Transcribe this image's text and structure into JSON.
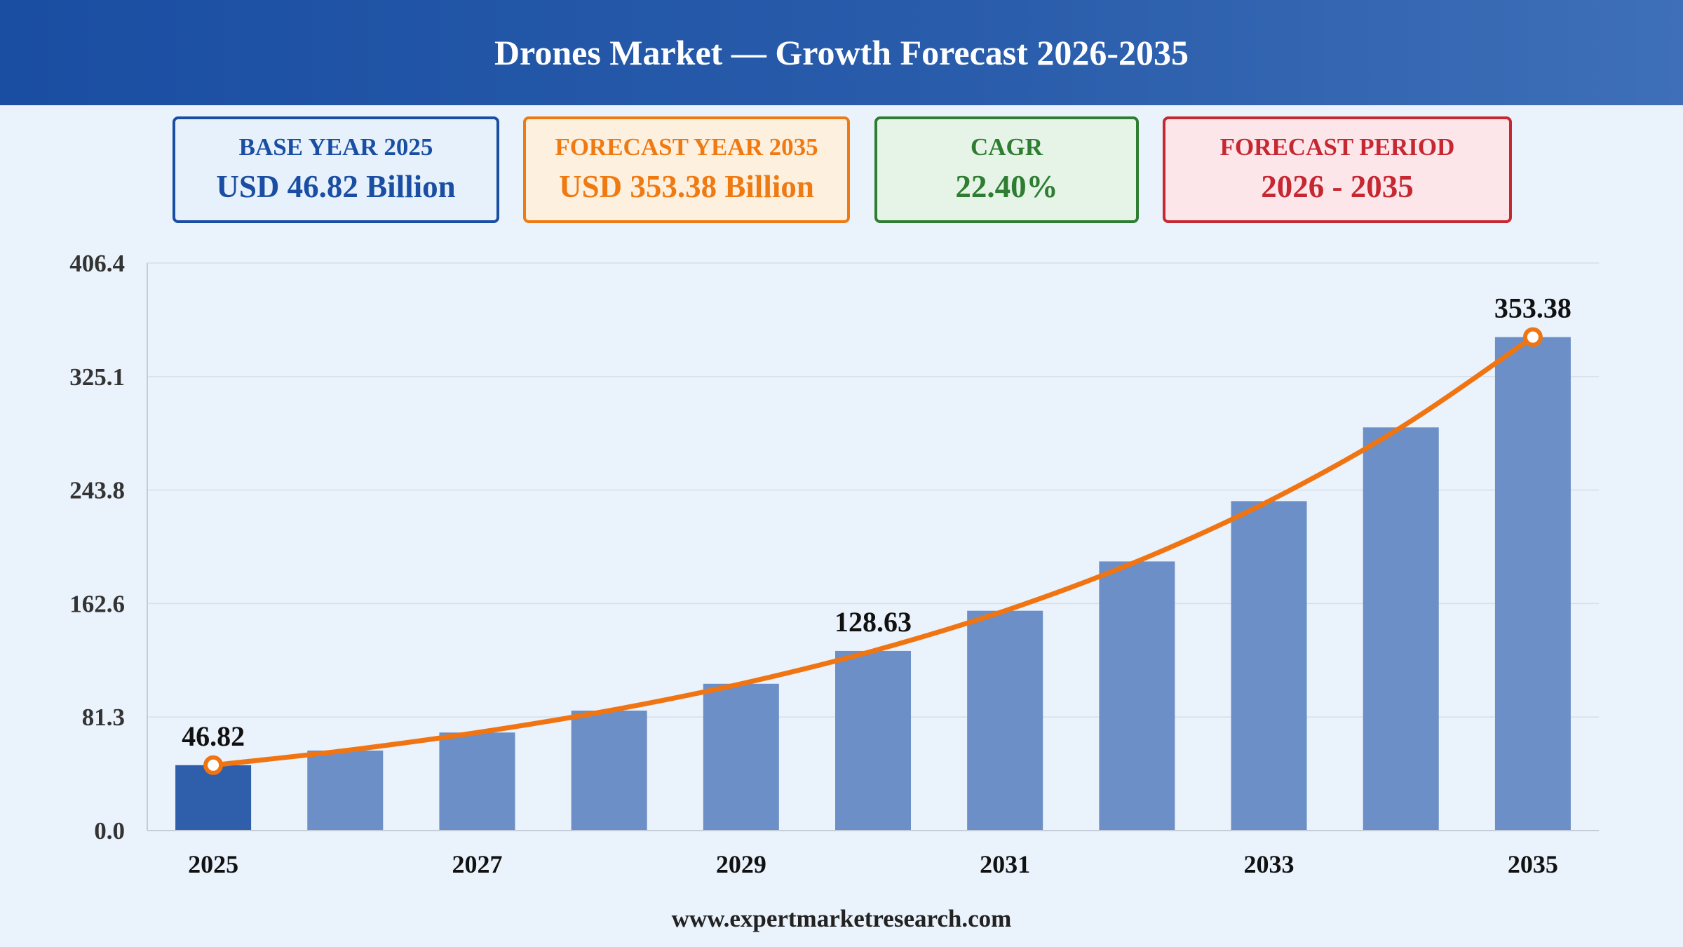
{
  "header": {
    "title": "Drones Market — Growth Forecast 2026-2035"
  },
  "kpis": [
    {
      "label": "BASE YEAR 2025",
      "value": "USD 46.82 Billion",
      "color": "#1a4ea2",
      "bg": "#e6f1fc"
    },
    {
      "label": "FORECAST YEAR 2035",
      "value": "USD 353.38 Billion",
      "color": "#f07a12",
      "bg": "#fdf0de"
    },
    {
      "label": "CAGR",
      "value": "22.40%",
      "color": "#2e7d32",
      "bg": "#e6f4e8"
    },
    {
      "label": "FORECAST PERIOD",
      "value": "2026 - 2035",
      "color": "#c62832",
      "bg": "#fce6ea"
    }
  ],
  "chart_data": {
    "type": "bar",
    "categories": [
      "2025",
      "2026",
      "2027",
      "2028",
      "2029",
      "2030",
      "2031",
      "2032",
      "2033",
      "2034",
      "2035"
    ],
    "values": [
      46.82,
      57.3,
      70.2,
      85.9,
      105.1,
      128.63,
      157.4,
      192.7,
      235.9,
      288.7,
      353.38
    ],
    "x_tick_labels": [
      "2025",
      "",
      "2027",
      "",
      "2029",
      "",
      "2031",
      "",
      "2033",
      "",
      "2035"
    ],
    "y_ticks": [
      "0.0",
      "81.3",
      "162.6",
      "243.8",
      "325.1",
      "406.4"
    ],
    "ylim": [
      0,
      406.4
    ],
    "data_labels": [
      {
        "index": 0,
        "text": "46.82"
      },
      {
        "index": 5,
        "text": "128.63"
      },
      {
        "index": 10,
        "text": "353.38"
      }
    ],
    "trend_line": true,
    "grid": true,
    "bar_color": "#6b8fc6",
    "highlight_bar_color": "#2f5eaa",
    "line_color": "#f07512"
  },
  "footer": {
    "source": "www.expertmarketresearch.com"
  }
}
